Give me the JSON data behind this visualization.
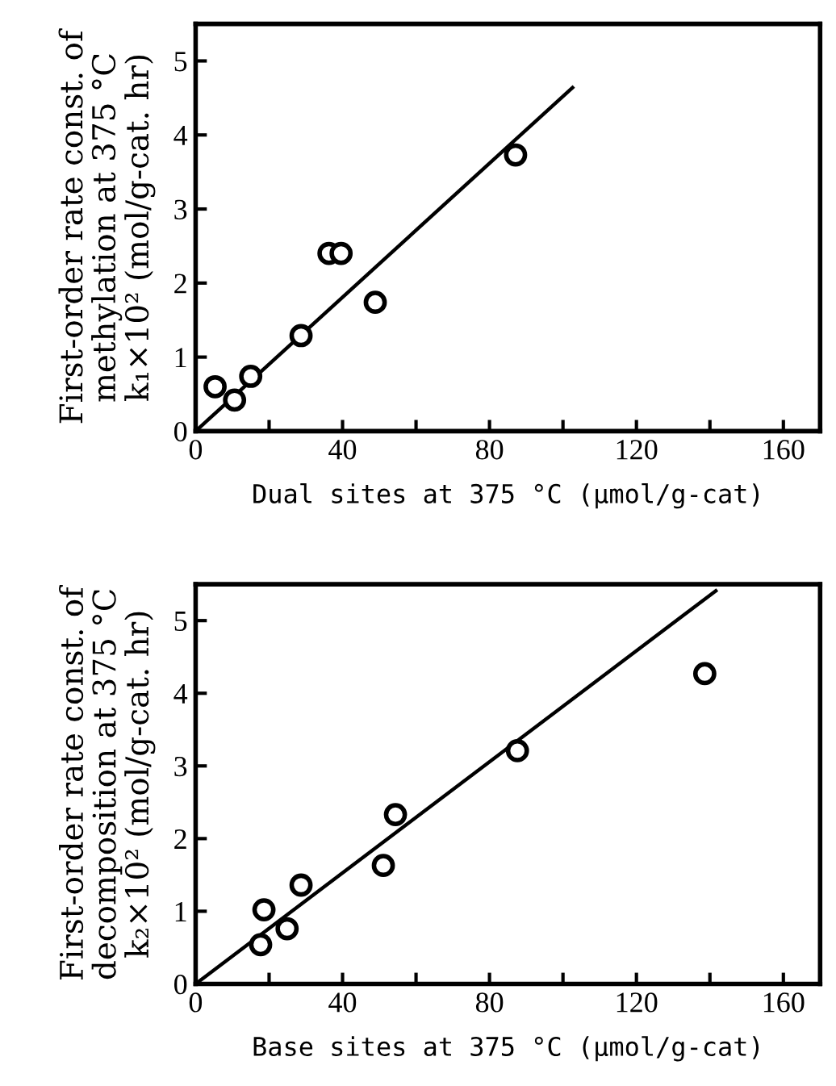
{
  "chart_data": [
    {
      "type": "scatter",
      "xlabel": "Dual sites at 375 °C (μmol/g-cat)",
      "ylabel": "First-order rate const. of\nmethylation at 375 °C\nk₁×10² (mol/g-cat. hr)",
      "xlim": [
        0,
        170
      ],
      "ylim": [
        0,
        5.5
      ],
      "xticks": [
        0,
        {
          "value": 20,
          "label": null
        },
        40,
        {
          "value": 60,
          "label": null
        },
        80,
        {
          "value": 100,
          "label": null
        },
        120,
        {
          "value": 140,
          "label": null
        },
        160
      ],
      "yticks": [
        0,
        1,
        2,
        3,
        4,
        5
      ],
      "grid": false,
      "legend": false,
      "marker": "circle",
      "series": [
        {
          "color": "#000000",
          "x": [
            5.3,
            10.6,
            15,
            28.7,
            36.3,
            39.6,
            48.9,
            87.1
          ],
          "values": [
            0.6,
            0.42,
            0.74,
            1.29,
            2.4,
            2.4,
            1.74,
            3.73
          ]
        },
        {
          "type": "line",
          "color": "#000000",
          "marker": "none",
          "line_style": "solid",
          "x": [
            0,
            102.6
          ],
          "values": [
            0,
            4.64
          ]
        }
      ]
    },
    {
      "type": "scatter",
      "xlabel": "Base sites at 375 °C (μmol/g-cat)",
      "ylabel": "First-order rate const. of\ndecomposition at 375 °C\nk₂×10² (mol/g-cat. hr)",
      "xlim": [
        0,
        170
      ],
      "ylim": [
        0,
        5.5
      ],
      "xticks": [
        0,
        {
          "value": 20,
          "label": null
        },
        40,
        {
          "value": 60,
          "label": null
        },
        80,
        {
          "value": 100,
          "label": null
        },
        120,
        {
          "value": 140,
          "label": null
        },
        160
      ],
      "yticks": [
        0,
        1,
        2,
        3,
        4,
        5
      ],
      "grid": false,
      "legend": false,
      "marker": "circle",
      "series": [
        {
          "color": "#000000",
          "x": [
            17.7,
            18.6,
            24.9,
            28.7,
            51.1,
            54.4,
            87.6,
            138.6
          ],
          "values": [
            0.54,
            1.02,
            0.76,
            1.36,
            1.63,
            2.33,
            3.21,
            4.27
          ]
        },
        {
          "type": "line",
          "color": "#000000",
          "marker": "none",
          "line_style": "solid",
          "x": [
            0,
            141.6
          ],
          "values": [
            0,
            5.41
          ]
        }
      ]
    }
  ]
}
